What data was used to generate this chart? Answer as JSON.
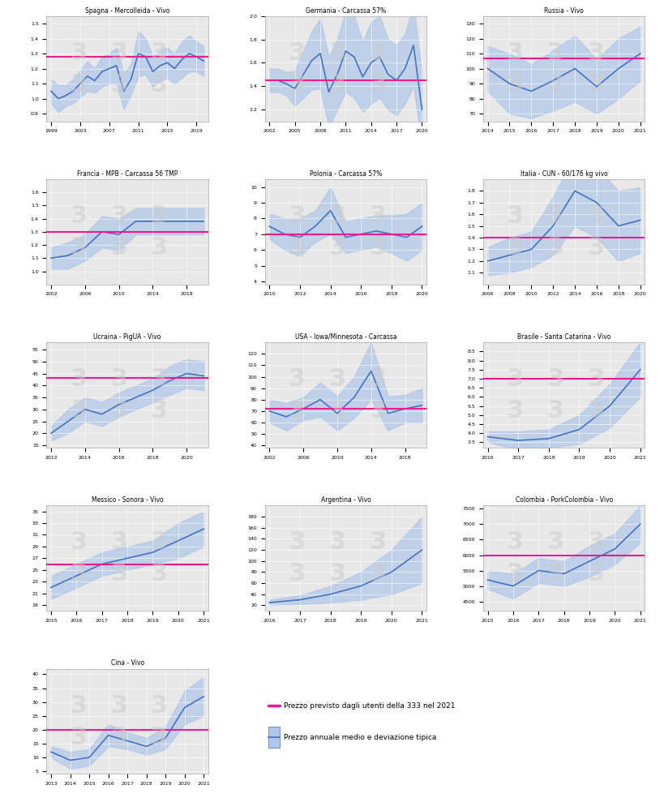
{
  "subplots": [
    {
      "title": "Spagna - Mercolleida - Vivo",
      "years": [
        1999,
        2000,
        2001,
        2002,
        2003,
        2004,
        2005,
        2006,
        2007,
        2008,
        2009,
        2010,
        2011,
        2012,
        2013,
        2014,
        2015,
        2016,
        2017,
        2018,
        2019,
        2020
      ],
      "mean": [
        1.05,
        1.0,
        1.02,
        1.05,
        1.1,
        1.15,
        1.12,
        1.18,
        1.2,
        1.22,
        1.05,
        1.13,
        1.3,
        1.28,
        1.18,
        1.22,
        1.24,
        1.2,
        1.26,
        1.3,
        1.28,
        1.25
      ],
      "std": [
        0.08,
        0.09,
        0.07,
        0.08,
        0.09,
        0.1,
        0.08,
        0.1,
        0.1,
        0.12,
        0.12,
        0.1,
        0.15,
        0.12,
        0.1,
        0.1,
        0.1,
        0.1,
        0.12,
        0.12,
        0.1,
        0.1
      ],
      "forecast": 1.28,
      "ylim": [
        0.85,
        1.55
      ],
      "yticks": [
        0.9,
        1.0,
        1.1,
        1.2,
        1.3,
        1.4,
        1.5
      ]
    },
    {
      "title": "Germania - Carcassa 57%",
      "years": [
        2002,
        2003,
        2004,
        2005,
        2006,
        2007,
        2008,
        2009,
        2010,
        2011,
        2012,
        2013,
        2014,
        2015,
        2016,
        2017,
        2018,
        2019,
        2020
      ],
      "mean": [
        1.45,
        1.45,
        1.42,
        1.38,
        1.5,
        1.62,
        1.68,
        1.35,
        1.5,
        1.7,
        1.65,
        1.48,
        1.6,
        1.65,
        1.5,
        1.45,
        1.55,
        1.75,
        1.2
      ],
      "std": [
        0.1,
        0.1,
        0.1,
        0.15,
        0.2,
        0.25,
        0.3,
        0.3,
        0.3,
        0.35,
        0.35,
        0.3,
        0.35,
        0.35,
        0.3,
        0.3,
        0.3,
        0.35,
        0.3
      ],
      "forecast": 1.45,
      "ylim": [
        1.1,
        2.0
      ],
      "yticks": [
        1.2,
        1.4,
        1.6,
        1.8,
        2.0
      ]
    },
    {
      "title": "Russia - Vivo",
      "years": [
        2014,
        2015,
        2016,
        2017,
        2018,
        2019,
        2020,
        2021
      ],
      "mean": [
        100,
        90,
        85,
        92,
        100,
        88,
        100,
        110
      ],
      "std": [
        15,
        20,
        18,
        20,
        22,
        18,
        20,
        18
      ],
      "forecast": 107,
      "ylim": [
        65,
        135
      ],
      "yticks": [
        70,
        80,
        90,
        100,
        110,
        120,
        130
      ]
    },
    {
      "title": "Francia - MPB - Carcassa 56 TMP",
      "years": [
        2002,
        2004,
        2006,
        2008,
        2010,
        2012,
        2014,
        2016,
        2018,
        2020
      ],
      "mean": [
        1.1,
        1.12,
        1.18,
        1.3,
        1.28,
        1.38,
        1.38,
        1.38,
        1.38,
        1.38
      ],
      "std": [
        0.08,
        0.1,
        0.1,
        0.12,
        0.12,
        0.1,
        0.1,
        0.1,
        0.1,
        0.1
      ],
      "forecast": 1.3,
      "ylim": [
        0.9,
        1.7
      ],
      "yticks": [
        1.0,
        1.1,
        1.2,
        1.3,
        1.4,
        1.5,
        1.6
      ]
    },
    {
      "title": "Polonia - Carcassa 57%",
      "years": [
        2010,
        2011,
        2012,
        2013,
        2014,
        2015,
        2016,
        2017,
        2018,
        2019,
        2020
      ],
      "mean": [
        7.5,
        7.0,
        6.8,
        7.5,
        8.5,
        6.8,
        7.0,
        7.2,
        7.0,
        6.8,
        7.5
      ],
      "std": [
        0.8,
        1.0,
        1.2,
        1.0,
        1.5,
        1.0,
        1.0,
        1.0,
        1.2,
        1.5,
        1.5
      ],
      "forecast": 7.0,
      "ylim": [
        3.8,
        10.5
      ],
      "yticks": [
        4.0,
        5.0,
        6.0,
        7.0,
        8.0,
        9.0,
        10.0
      ]
    },
    {
      "title": "Italia - CUN - 60/176 kg vivo",
      "years": [
        2006,
        2008,
        2010,
        2012,
        2014,
        2016,
        2018,
        2020
      ],
      "mean": [
        1.2,
        1.25,
        1.3,
        1.5,
        1.8,
        1.7,
        1.5,
        1.55
      ],
      "std": [
        0.12,
        0.15,
        0.15,
        0.25,
        0.3,
        0.3,
        0.3,
        0.28
      ],
      "forecast": 1.4,
      "ylim": [
        1.0,
        1.9
      ],
      "yticks": [
        1.1,
        1.2,
        1.3,
        1.4,
        1.5,
        1.6,
        1.7,
        1.8
      ]
    },
    {
      "title": "Ucraina - PigUA - Vivo",
      "years": [
        2012,
        2013,
        2014,
        2015,
        2016,
        2017,
        2018,
        2019,
        2020,
        2021
      ],
      "mean": [
        20,
        25,
        30,
        28,
        32,
        35,
        38,
        42,
        45,
        44
      ],
      "std": [
        3,
        5,
        5,
        5,
        5,
        5,
        5,
        6,
        6,
        6
      ],
      "forecast": 43,
      "ylim": [
        14,
        58
      ],
      "yticks": [
        15,
        20,
        25,
        30,
        35,
        40,
        45,
        50,
        55
      ]
    },
    {
      "title": "USA - Iowa/Minnesota - Carcassa",
      "years": [
        2002,
        2004,
        2006,
        2008,
        2010,
        2012,
        2014,
        2016,
        2018,
        2020
      ],
      "mean": [
        70,
        65,
        72,
        80,
        68,
        82,
        105,
        68,
        72,
        75
      ],
      "std": [
        10,
        12,
        10,
        15,
        15,
        18,
        25,
        15,
        12,
        15
      ],
      "forecast": 72,
      "ylim": [
        38,
        130
      ],
      "yticks": [
        40,
        50,
        60,
        70,
        80,
        90,
        100,
        110,
        120
      ]
    },
    {
      "title": "Brasile - Santa Catarina - Vivo",
      "years": [
        2016,
        2017,
        2018,
        2019,
        2020,
        2021
      ],
      "mean": [
        3.8,
        3.6,
        3.7,
        4.2,
        5.5,
        7.5
      ],
      "std": [
        0.3,
        0.5,
        0.5,
        0.8,
        1.2,
        1.5
      ],
      "forecast": 7.0,
      "ylim": [
        3.2,
        9.0
      ],
      "yticks": [
        3.5,
        4.0,
        4.5,
        5.0,
        5.5,
        6.0,
        6.5,
        7.0,
        7.5,
        8.0,
        8.5
      ]
    },
    {
      "title": "Messico - Sonora - Vivo",
      "years": [
        2015,
        2016,
        2017,
        2018,
        2019,
        2020,
        2021
      ],
      "mean": [
        22,
        24,
        26,
        27,
        28,
        30,
        32
      ],
      "std": [
        2,
        2,
        2,
        2,
        2,
        3,
        3
      ],
      "forecast": 26,
      "ylim": [
        18,
        36
      ],
      "yticks": [
        19,
        21,
        23,
        25,
        27,
        29,
        31,
        33,
        35
      ]
    },
    {
      "title": "Argentina - Vivo",
      "years": [
        2016,
        2017,
        2018,
        2019,
        2020,
        2021
      ],
      "mean": [
        25,
        30,
        40,
        55,
        80,
        120
      ],
      "std": [
        5,
        8,
        15,
        25,
        40,
        60
      ],
      "forecast": null,
      "ylim": [
        10,
        200
      ],
      "yticks": [
        20,
        40,
        60,
        80,
        100,
        120,
        140,
        160,
        180
      ]
    },
    {
      "title": "Colombia - PorkColombia - Vivo",
      "years": [
        2015,
        2016,
        2017,
        2018,
        2019,
        2020,
        2021
      ],
      "mean": [
        5200,
        5000,
        5500,
        5400,
        5800,
        6200,
        7000
      ],
      "std": [
        300,
        400,
        400,
        400,
        500,
        500,
        600
      ],
      "forecast": 6000,
      "ylim": [
        4200,
        7600
      ],
      "yticks": [
        4500,
        5000,
        5500,
        6000,
        6500,
        7000,
        7500
      ]
    },
    {
      "title": "Cina - Vivo",
      "years": [
        2013,
        2014,
        2015,
        2016,
        2017,
        2018,
        2019,
        2020,
        2021
      ],
      "mean": [
        12,
        9,
        10,
        18,
        16,
        14,
        17,
        28,
        32
      ],
      "std": [
        2,
        3,
        3,
        4,
        3,
        3,
        4,
        6,
        7
      ],
      "forecast": 20,
      "ylim": [
        4,
        42
      ],
      "yticks": [
        5,
        10,
        15,
        20,
        25,
        30,
        35,
        40
      ]
    }
  ],
  "line_color": "#4472C4",
  "fill_color": "#aec6e8",
  "forecast_color": "#e91e8c",
  "background_color": "#e8e8e8",
  "watermark_color": "#d0d0d0",
  "legend_forecast_label": "Prezzo previsto dagli utenti della 333 nel 2021",
  "legend_band_label": "Prezzo annuale medio e deviazione tipica",
  "figure_title": ""
}
